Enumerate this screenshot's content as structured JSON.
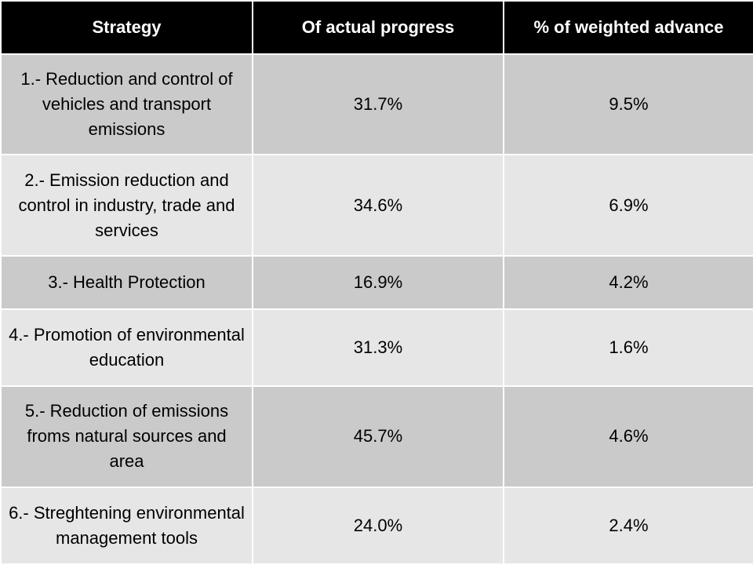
{
  "table": {
    "headers": [
      "Strategy",
      "Of actual progress",
      "% of weighted advance"
    ],
    "rows": [
      {
        "strategy": "1.- Reduction and control of vehicles and transport emissions",
        "actual": "31.7%",
        "weighted": "9.5%"
      },
      {
        "strategy": "2.- Emission reduction and control in industry, trade and services",
        "actual": "34.6%",
        "weighted": "6.9%"
      },
      {
        "strategy": "3.- Health Protection",
        "actual": "16.9%",
        "weighted": "4.2%"
      },
      {
        "strategy": "4.- Promotion of environmental education",
        "actual": "31.3%",
        "weighted": "1.6%"
      },
      {
        "strategy": "5.- Reduction of emissions froms natural sources and area",
        "actual": "45.7%",
        "weighted": "4.6%"
      },
      {
        "strategy": "6.- Streghtening environmental management tools",
        "actual": "24.0%",
        "weighted": "2.4%"
      }
    ]
  },
  "colors": {
    "header_bg": "#000000",
    "header_text": "#ffffff",
    "row_dark": "#cacaca",
    "row_light": "#e6e6e6"
  }
}
